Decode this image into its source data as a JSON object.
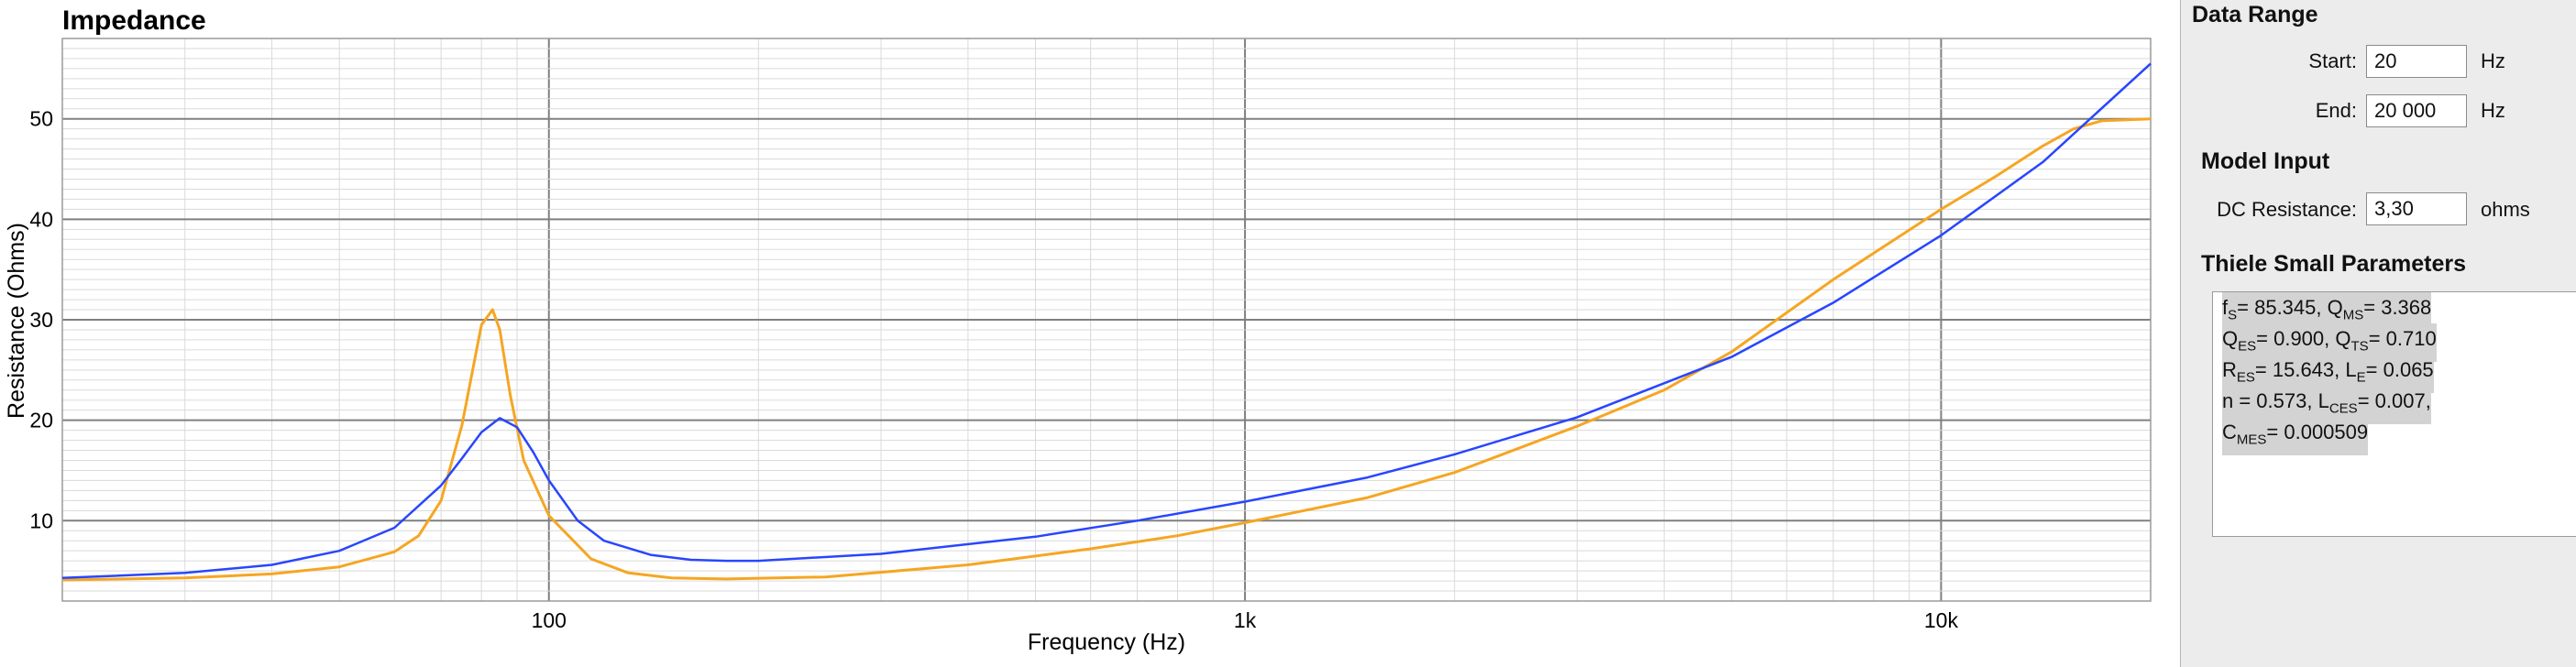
{
  "chart_data": {
    "type": "line",
    "title": "Impedance",
    "xlabel": "Frequency (Hz)",
    "ylabel": "Resistance (Ohms)",
    "xscale": "log",
    "xlim": [
      20,
      20000
    ],
    "ylim": [
      2,
      58
    ],
    "x_ticks": [
      {
        "value": 100,
        "label": "100"
      },
      {
        "value": 1000,
        "label": "1k"
      },
      {
        "value": 10000,
        "label": "10k"
      }
    ],
    "y_ticks": [
      10,
      20,
      30,
      40,
      50
    ],
    "grid": true,
    "series": [
      {
        "color": "#f5a623",
        "x": [
          20,
          30,
          40,
          50,
          60,
          65,
          70,
          75,
          80,
          83,
          85,
          88,
          92,
          100,
          115,
          130,
          150,
          180,
          250,
          400,
          600,
          800,
          1000,
          1500,
          2000,
          3000,
          4000,
          5000,
          7000,
          10000,
          12000,
          14000,
          15500,
          17000,
          20000
        ],
        "y": [
          4.1,
          4.3,
          4.7,
          5.4,
          6.9,
          8.5,
          12,
          19.5,
          29.5,
          31,
          29,
          22.5,
          16,
          10.5,
          6.2,
          4.8,
          4.3,
          4.2,
          4.4,
          5.6,
          7.2,
          8.5,
          9.8,
          12.3,
          14.8,
          19.4,
          23,
          26.8,
          34,
          41,
          44.3,
          47.3,
          49,
          49.8,
          50
        ]
      },
      {
        "color": "#2846ff",
        "x": [
          20,
          30,
          40,
          50,
          60,
          70,
          75,
          80,
          85,
          90,
          95,
          100,
          110,
          120,
          140,
          160,
          180,
          200,
          300,
          500,
          700,
          1000,
          1500,
          2000,
          3000,
          5000,
          7000,
          10000,
          14000,
          20000
        ],
        "y": [
          4.3,
          4.8,
          5.6,
          7,
          9.3,
          13.5,
          16.2,
          18.8,
          20.2,
          19.3,
          16.8,
          14,
          10,
          8,
          6.6,
          6.1,
          6,
          6,
          6.7,
          8.4,
          10,
          11.9,
          14.3,
          16.6,
          20.3,
          26.3,
          31.7,
          38.4,
          45.7,
          55.5
        ]
      }
    ]
  },
  "panel": {
    "data_range_title": "Data Range",
    "start_label": "Start:",
    "start_value": "20",
    "start_unit": "Hz",
    "end_label": "End:",
    "end_value": "20 000",
    "end_unit": "Hz",
    "model_input_title": "Model Input",
    "dc_label": "DC Resistance:",
    "dc_value": "3,30",
    "dc_unit": "ohms",
    "ts_title": "Thiele Small Parameters",
    "ts": {
      "fs": "= 85.345, ",
      "qms": "= 3.368",
      "qes": "= 0.900, ",
      "qts": "= 0.710",
      "res": "= 15.643, ",
      "le": "= 0.065",
      "n": "n = 0.573, ",
      "lces": "= 0.007,",
      "cmes": "= 0.000509"
    }
  }
}
